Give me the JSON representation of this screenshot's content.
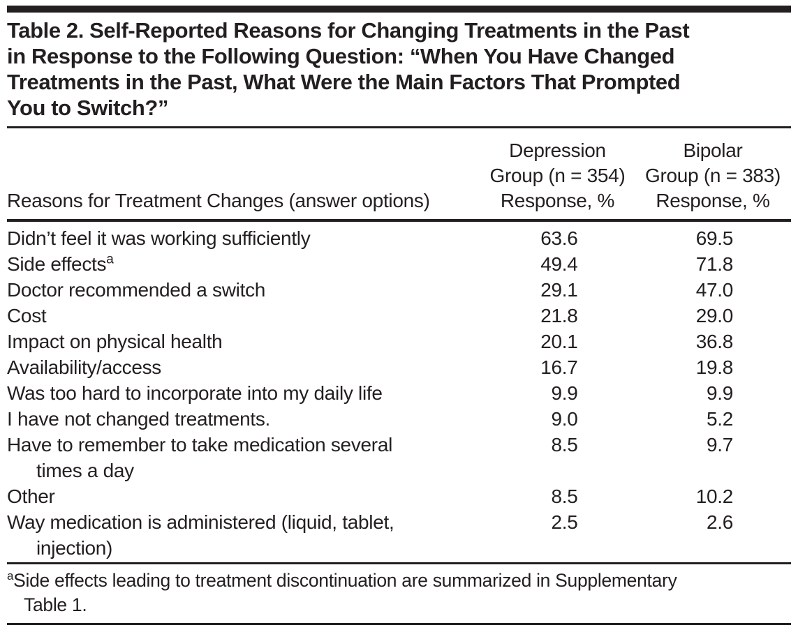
{
  "title": "Table 2. Self-Reported Reasons for Changing Treatments in the Past\nin Response to the Following Question: “When You Have Changed\nTreatments in the Past, What Were the Main Factors That Prompted\nYou to Switch?”",
  "table": {
    "columns": {
      "reason": "Reasons for Treatment Changes (answer options)",
      "depression": "Depression\nGroup (n = 354)\nResponse, %",
      "bipolar": "Bipolar\nGroup (n = 383)\nResponse, %"
    },
    "rows": [
      {
        "label": "Didn’t feel it was working sufficiently",
        "depression": "63.6",
        "bipolar": "69.5"
      },
      {
        "label": "Side effects",
        "sup": "a",
        "depression": "49.4",
        "bipolar": "71.8"
      },
      {
        "label": "Doctor recommended a switch",
        "depression": "29.1",
        "bipolar": "47.0"
      },
      {
        "label": "Cost",
        "depression": "21.8",
        "bipolar": "29.0"
      },
      {
        "label": "Impact on physical health",
        "depression": "20.1",
        "bipolar": "36.8"
      },
      {
        "label": "Availability/access",
        "depression": "16.7",
        "bipolar": "19.8"
      },
      {
        "label": "Was too hard to incorporate into my daily life",
        "depression": "9.9",
        "bipolar": "9.9"
      },
      {
        "label": "I have not changed treatments.",
        "depression": "9.0",
        "bipolar": "5.2"
      },
      {
        "label": "Have to remember to take medication several\ntimes a day",
        "depression": "8.5",
        "bipolar": "9.7"
      },
      {
        "label": "Other",
        "depression": "8.5",
        "bipolar": "10.2"
      },
      {
        "label": "Way medication is administered (liquid, tablet,\ninjection)",
        "depression": "2.5",
        "bipolar": "2.6"
      }
    ]
  },
  "footnote": {
    "marker": "a",
    "text": "Side effects leading to treatment discontinuation are summarized in Supplementary\nTable 1."
  },
  "colors": {
    "text": "#231f20",
    "rule": "#231f20",
    "background": "#ffffff"
  }
}
